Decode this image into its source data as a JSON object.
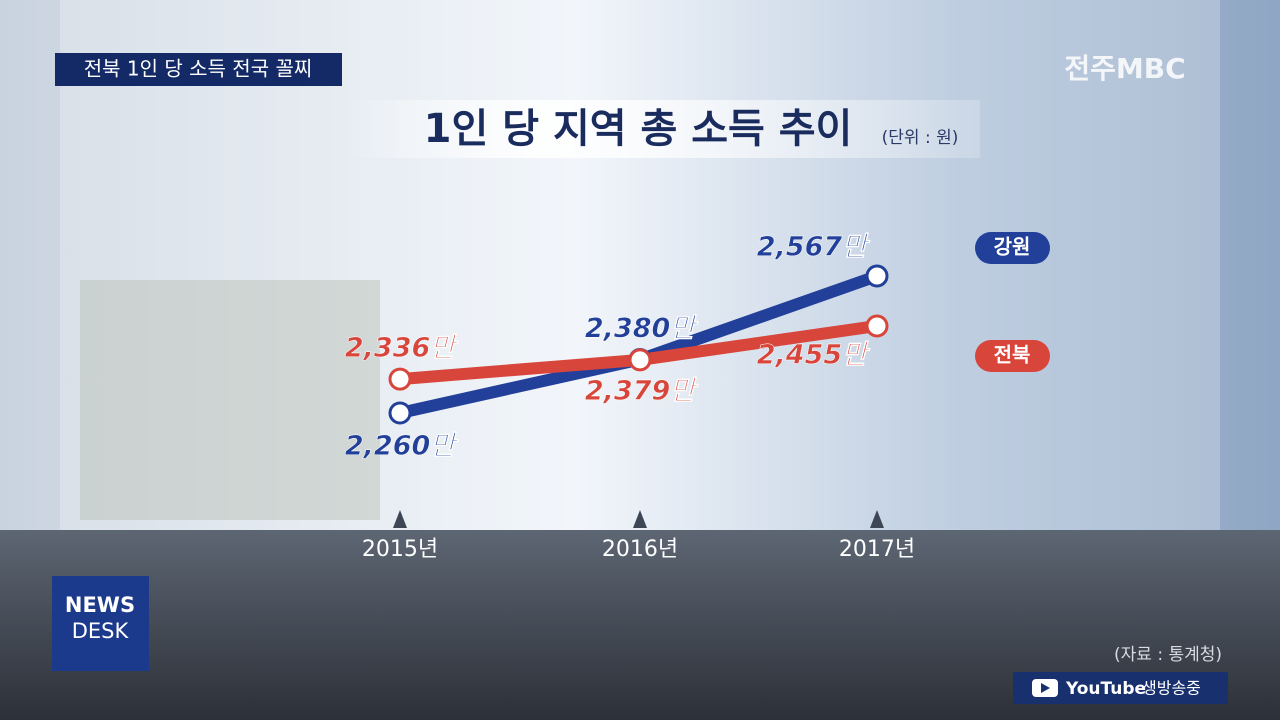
{
  "caption": "전북 1인 당 소득 전국 꼴찌",
  "logo": "전주MBC",
  "source": "(자료 : 통계청)",
  "news_desk": [
    "NEWS",
    "DESK"
  ],
  "youtube": [
    "YouTube",
    "생방송중"
  ],
  "chart_data": {
    "type": "line",
    "title": "1인 당 지역 총 소득 추이",
    "subtitle": "(단위 : 원)",
    "categories": [
      "2015년",
      "2016년",
      "2017년"
    ],
    "series": [
      {
        "name": "강원",
        "color": "#22409a",
        "values": [
          2260,
          2380,
          2567
        ],
        "value_labels": [
          "2,260만",
          "2,380만",
          "2,567만"
        ]
      },
      {
        "name": "전북",
        "color": "#d8453b",
        "values": [
          2336,
          2379,
          2455
        ],
        "value_labels": [
          "2,336만",
          "2,379만",
          "2,455만"
        ]
      }
    ]
  }
}
